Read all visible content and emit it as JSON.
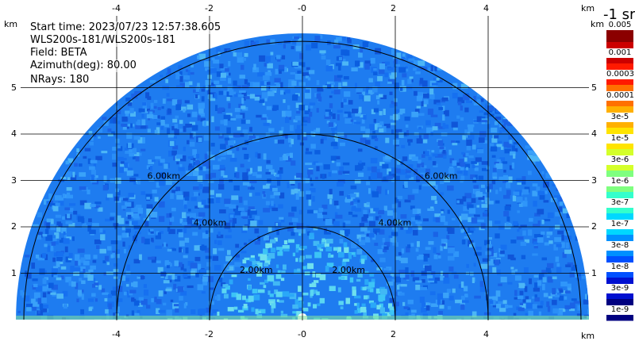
{
  "info": {
    "start_time": "Start time: 2023/07/23 12:57:38.605",
    "instrument": "WLS200s-181/WLS200s-181",
    "field": "Field: BETA",
    "azimuth": "Azimuth(deg): 80.00",
    "nrays": "NRays: 180"
  },
  "axes": {
    "x_unit": "km",
    "y_unit": "km",
    "x_ticks": [
      "-4",
      "-2",
      "-0",
      "2",
      "4"
    ],
    "y_ticks": [
      "5",
      "4",
      "3",
      "2",
      "1"
    ]
  },
  "range_rings": [
    "2.00km",
    "4.00km",
    "6.00km"
  ],
  "colorbar": {
    "title": "-1 sr",
    "labels": [
      "0.005",
      "0.001",
      "0.0003",
      "0.0001",
      "3e-5",
      "1e-5",
      "3e-6",
      "1e-6",
      "3e-7",
      "1e-7",
      "3e-8",
      "1e-8",
      "3e-9",
      "1e-9"
    ],
    "colors": [
      "#8b0000",
      "#cc0000",
      "#ff1a00",
      "#ff7000",
      "#ffb000",
      "#ffe400",
      "#d4ff2a",
      "#7fff7f",
      "#33ffcc",
      "#00d8ff",
      "#0090ff",
      "#0050ff",
      "#0010d0",
      "#000080"
    ]
  },
  "chart_data": {
    "type": "heatmap",
    "ranges_km": [
      2,
      4,
      6
    ],
    "x_range_km": [
      -6.2,
      6.2
    ],
    "y_range_km": [
      0,
      6
    ]
  }
}
